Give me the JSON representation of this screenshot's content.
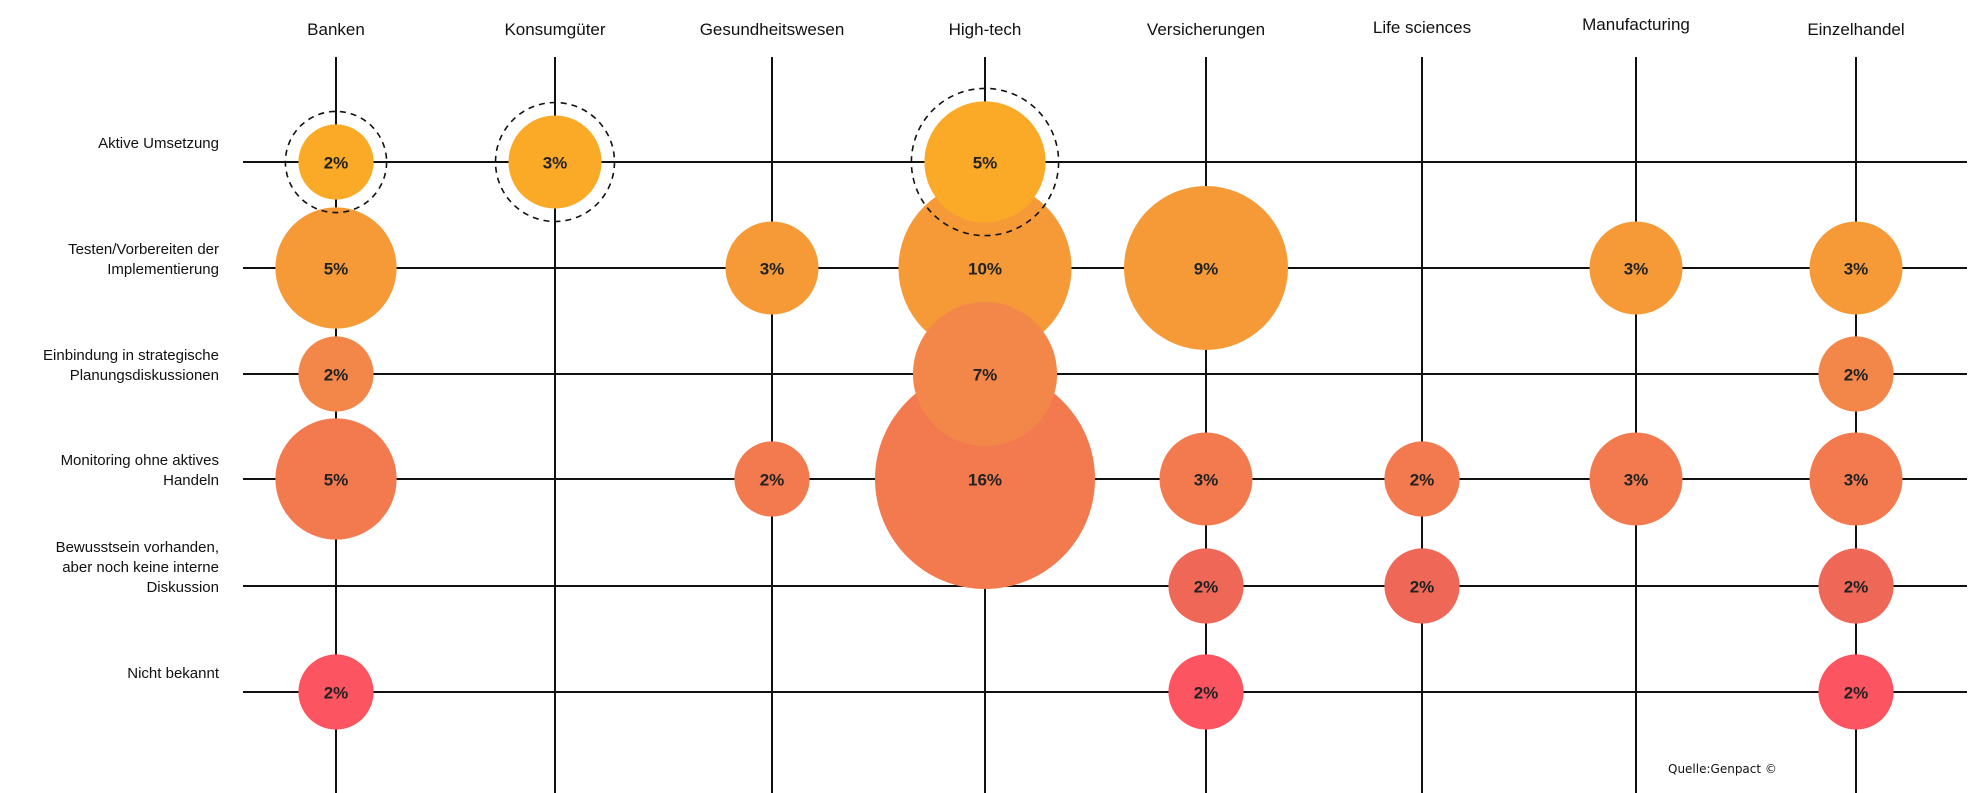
{
  "chart_data": {
    "type": "bubble-matrix",
    "columns": [
      "Banken",
      "Konsumgüter",
      "Gesundheitswesen",
      "High-tech",
      "Versicherungen",
      "Life sciences",
      "Manufacturing",
      "Einzelhandel"
    ],
    "rows": [
      {
        "label": [
          "Aktive Umsetzung"
        ],
        "color": "#FBAA28"
      },
      {
        "label": [
          "Testen/Vorbereiten der",
          "Implementierung"
        ],
        "color": "#F59A36"
      },
      {
        "label": [
          "Einbindung in strategische",
          "Planungsdiskussionen"
        ],
        "color": "#F3874A"
      },
      {
        "label": [
          "Monitoring ohne aktives",
          "Handeln"
        ],
        "color": "#F27A4E"
      },
      {
        "label": [
          "Bewusstsein vorhanden,",
          "aber noch keine interne",
          "Diskussion"
        ],
        "color": "#EF6857"
      },
      {
        "label": [
          "Nicht bekannt"
        ],
        "color": "#FC5561"
      }
    ],
    "values": [
      [
        2,
        3,
        null,
        5,
        null,
        null,
        null,
        null
      ],
      [
        5,
        null,
        3,
        10,
        9,
        null,
        3,
        3
      ],
      [
        2,
        null,
        null,
        7,
        null,
        null,
        null,
        2
      ],
      [
        5,
        null,
        2,
        16,
        3,
        2,
        3,
        3
      ],
      [
        null,
        null,
        null,
        null,
        2,
        2,
        null,
        2
      ],
      [
        2,
        null,
        null,
        null,
        2,
        null,
        null,
        2
      ]
    ],
    "unit": "%",
    "highlighted": [
      [
        0,
        0
      ],
      [
        0,
        1
      ],
      [
        0,
        3
      ]
    ],
    "source": "Quelle:Genpact ©"
  }
}
